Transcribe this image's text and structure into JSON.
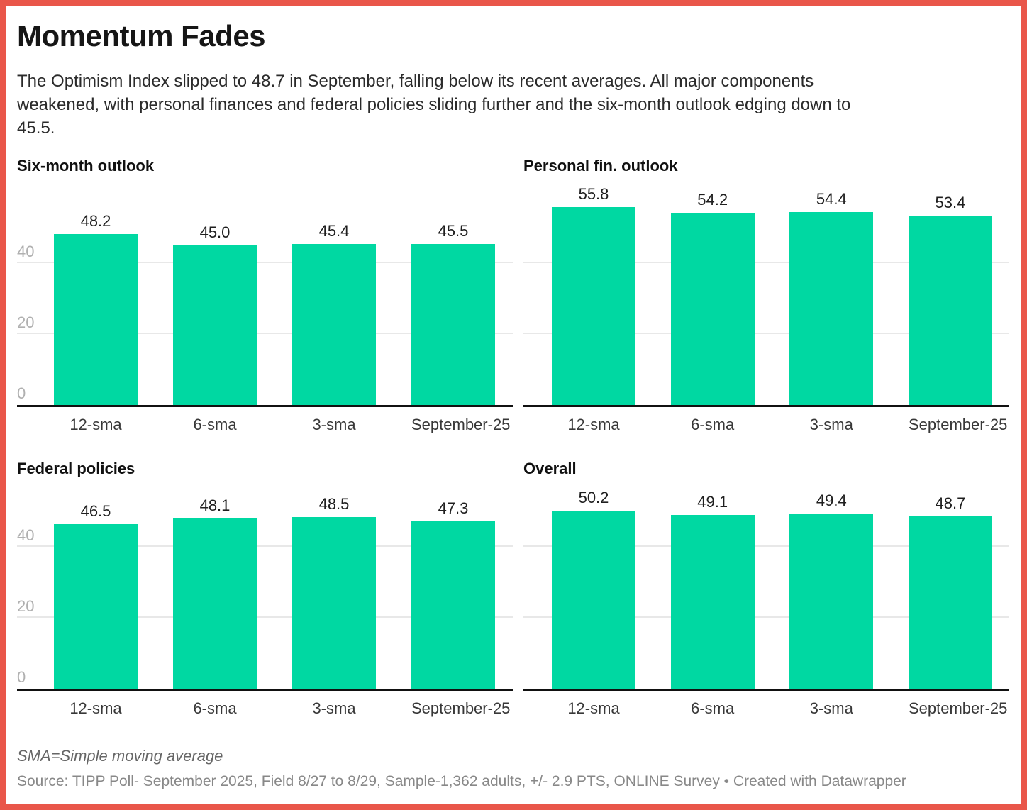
{
  "header": {
    "title": "Momentum Fades",
    "description_lines": [
      "The Optimism Index slipped to 48.7 in September, falling below its recent averages. All major components",
      "weakened, with personal finances and federal policies sliding further and the six-month outlook edging down to",
      "45.5."
    ]
  },
  "chart_data": [
    {
      "type": "bar",
      "title": "Six-month outlook",
      "categories": [
        "12-sma",
        "6-sma",
        "3-sma",
        "September-25"
      ],
      "values": [
        48.2,
        45.0,
        45.4,
        45.5
      ],
      "yticks": [
        0,
        20,
        40
      ],
      "ylim": [
        0,
        57.4
      ],
      "show_axis_labels": true,
      "grid": true,
      "legend": "none"
    },
    {
      "type": "bar",
      "title": "Personal fin. outlook",
      "categories": [
        "12-sma",
        "6-sma",
        "3-sma",
        "September-25"
      ],
      "values": [
        55.8,
        54.2,
        54.4,
        53.4
      ],
      "yticks": [
        0,
        20,
        40
      ],
      "ylim": [
        0,
        57.4
      ],
      "show_axis_labels": false,
      "grid": true,
      "legend": "none"
    },
    {
      "type": "bar",
      "title": "Federal policies",
      "categories": [
        "12-sma",
        "6-sma",
        "3-sma",
        "September-25"
      ],
      "values": [
        46.5,
        48.1,
        48.5,
        47.3
      ],
      "yticks": [
        0,
        20,
        40
      ],
      "ylim": [
        0,
        52
      ],
      "show_axis_labels": true,
      "grid": true,
      "legend": "none"
    },
    {
      "type": "bar",
      "title": "Overall",
      "categories": [
        "12-sma",
        "6-sma",
        "3-sma",
        "September-25"
      ],
      "values": [
        50.2,
        49.1,
        49.4,
        48.7
      ],
      "yticks": [
        0,
        20,
        40
      ],
      "ylim": [
        0,
        52
      ],
      "show_axis_labels": false,
      "grid": true,
      "legend": "none"
    }
  ],
  "footer": {
    "note": "SMA=Simple moving average",
    "source": "Source: TIPP Poll- September 2025, Field 8/27 to 8/29, Sample-1,362 adults, +/- 2.9 PTS, ONLINE Survey • Created with Datawrapper"
  },
  "colors": {
    "bar": "#00d8a2",
    "border": "#e9564a",
    "gridline": "#e8e8e8",
    "axis_baseline": "#111111",
    "tick_label": "#b0b0b0"
  }
}
